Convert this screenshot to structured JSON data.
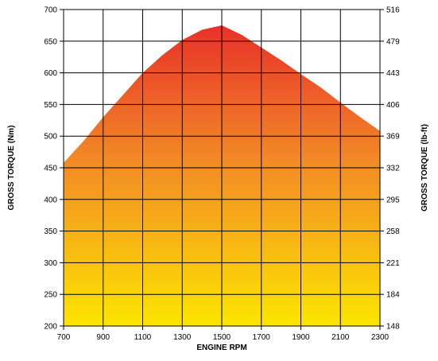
{
  "chart_data": {
    "type": "area",
    "title": "",
    "xlabel": "ENGINE RPM",
    "ylabel": "GROSS TORQUE (Nm)",
    "ylabel_right": "GROSS TORQUE (lb-ft)",
    "xlim": [
      700,
      2300
    ],
    "ylim": [
      200,
      700
    ],
    "x_ticks": [
      "700",
      "900",
      "1100",
      "1300",
      "1500",
      "1700",
      "1900",
      "2100",
      "2300"
    ],
    "y_ticks": [
      "200",
      "250",
      "300",
      "350",
      "400",
      "450",
      "500",
      "550",
      "600",
      "650",
      "700"
    ],
    "y_ticks_right": [
      "148",
      "184",
      "221",
      "258",
      "295",
      "332",
      "369",
      "406",
      "443",
      "479",
      "516"
    ],
    "grid": true,
    "fill_gradient": {
      "top": "#e8302a",
      "middle": "#f28a26",
      "bottom": "#fde500"
    },
    "x": [
      700,
      800,
      900,
      1000,
      1100,
      1200,
      1300,
      1400,
      1500,
      1600,
      1700,
      1800,
      1900,
      2000,
      2100,
      2200,
      2300
    ],
    "values": [
      458,
      492,
      530,
      565,
      600,
      628,
      652,
      668,
      675,
      660,
      640,
      620,
      598,
      577,
      553,
      530,
      508
    ]
  }
}
